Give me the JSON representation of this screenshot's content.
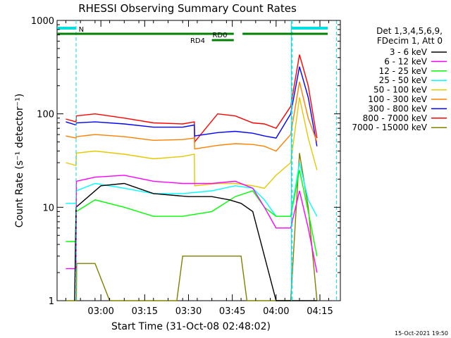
{
  "chart_data": {
    "type": "line",
    "title": "RHESSI Observing Summary Count Rates",
    "xlabel": "Start Time (31-Oct-08 02:48:02)",
    "ylabel": "Count Rate (s⁻¹ detector⁻¹)",
    "yscale": "log",
    "ylim": [
      1,
      1000
    ],
    "xlim_minutes_after_start": [
      -3,
      94
    ],
    "x_ticks": [
      "03:00",
      "03:15",
      "03:30",
      "03:45",
      "04:00",
      "04:15"
    ],
    "y_ticks": [
      "1",
      "10",
      "100",
      "1000"
    ],
    "grid": false,
    "legend_header": [
      "Det 1,3,4,5,6,9,",
      "FDecim 1, Att 0"
    ],
    "legend_placement": "right",
    "timestamp": "15-Oct-2021 19:50",
    "bar_labels": {
      "N": "N",
      "RD0": "RD0",
      "RD4": "RD4"
    },
    "x_unit": "minutes after 02:48:02",
    "series": [
      {
        "name": "3 - 6 keV",
        "color": "#000000",
        "x": [
          3.0,
          3.5,
          12,
          20,
          30,
          42,
          50,
          56,
          60,
          64,
          72,
          78,
          84,
          86
        ],
        "y": [
          1,
          10,
          17,
          18,
          14,
          13,
          13,
          12,
          11,
          9,
          1,
          1,
          1,
          1
        ]
      },
      {
        "name": "6 - 12 keV",
        "color": "#ff00ff",
        "x": [
          0,
          3.5,
          3.6,
          10,
          20,
          30,
          40,
          50,
          58,
          64,
          68,
          72,
          77,
          80,
          83,
          86
        ],
        "y": [
          2.2,
          2.2,
          19,
          21,
          22,
          19,
          18,
          18,
          19,
          16,
          10,
          6,
          6,
          15,
          6,
          2
        ]
      },
      {
        "name": "12 - 25 keV",
        "color": "#00ff00",
        "x": [
          0,
          3.5,
          3.6,
          10,
          20,
          30,
          40,
          50,
          58,
          64,
          68,
          72,
          77,
          80,
          83,
          86
        ],
        "y": [
          4.3,
          4.3,
          9,
          12,
          10,
          8,
          8,
          9,
          13,
          15,
          10,
          8,
          8,
          25,
          9,
          3
        ]
      },
      {
        "name": "25 - 50 keV",
        "color": "#00ffff",
        "x": [
          0,
          3.5,
          3.6,
          10,
          20,
          30,
          40,
          50,
          58,
          64,
          68,
          72,
          77,
          80,
          83,
          86
        ],
        "y": [
          11,
          11,
          15,
          18,
          16,
          14,
          14,
          15,
          17,
          16,
          12,
          8,
          8,
          30,
          12,
          8
        ]
      },
      {
        "name": "50 - 100 keV",
        "color": "#e6c800",
        "x": [
          0,
          3.5,
          3.6,
          10,
          20,
          30,
          40,
          44,
          44.1,
          52,
          58,
          64,
          68,
          72,
          77,
          80,
          83,
          86
        ],
        "y": [
          30,
          28,
          38,
          40,
          37,
          33,
          35,
          37,
          17,
          18,
          18,
          17,
          16,
          22,
          30,
          150,
          55,
          25
        ]
      },
      {
        "name": "100 - 300 keV",
        "color": "#ff8000",
        "x": [
          0,
          3.5,
          3.6,
          10,
          20,
          30,
          40,
          44,
          44.1,
          52,
          58,
          64,
          68,
          72,
          77,
          80,
          83,
          86
        ],
        "y": [
          58,
          55,
          57,
          60,
          57,
          52,
          53,
          55,
          42,
          46,
          48,
          47,
          45,
          40,
          60,
          220,
          90,
          50
        ]
      },
      {
        "name": "300 - 800 keV",
        "color": "#0000ff",
        "x": [
          0,
          3.5,
          3.6,
          10,
          20,
          30,
          40,
          44,
          44.1,
          52,
          58,
          64,
          68,
          72,
          77,
          80,
          83,
          86
        ],
        "y": [
          82,
          76,
          80,
          82,
          78,
          72,
          72,
          76,
          58,
          63,
          65,
          62,
          58,
          55,
          100,
          320,
          150,
          45
        ]
      },
      {
        "name": "800 - 7000 keV",
        "color": "#ff0000",
        "x": [
          0,
          3.5,
          3.6,
          10,
          20,
          30,
          40,
          44,
          44.1,
          52,
          58,
          64,
          68,
          72,
          77,
          80,
          83,
          86
        ],
        "y": [
          88,
          82,
          95,
          100,
          90,
          80,
          78,
          82,
          50,
          100,
          95,
          80,
          78,
          70,
          120,
          430,
          200,
          55
        ]
      },
      {
        "name": "7000 - 15000 keV",
        "color": "#808000",
        "x": [
          0,
          3.6,
          3.7,
          10,
          15,
          17,
          38,
          40,
          60,
          62,
          72,
          77,
          80,
          83,
          86
        ],
        "y": [
          1,
          1,
          2.5,
          2.5,
          1,
          1,
          1,
          3,
          3,
          1,
          1,
          1,
          38,
          10,
          1
        ]
      }
    ]
  }
}
